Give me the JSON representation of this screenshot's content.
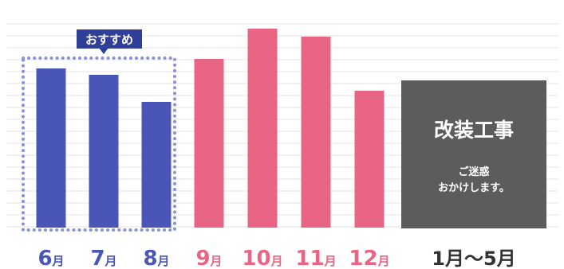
{
  "chart_data": {
    "type": "bar",
    "categories": [
      "6月",
      "7月",
      "8月",
      "9月",
      "10月",
      "11月",
      "12月"
    ],
    "values": [
      200,
      192,
      158,
      212,
      250,
      240,
      172
    ],
    "bar_colors": [
      "#4a55b8",
      "#4a55b8",
      "#4a55b8",
      "#e86583",
      "#e86583",
      "#e86583",
      "#e86583"
    ],
    "grid": true,
    "ylim": [
      0,
      270
    ],
    "recommend_badge": "おすすめ",
    "recommended_months": [
      "6月",
      "7月",
      "8月"
    ],
    "closed_period": {
      "label": "1月〜5月",
      "title": "改装工事",
      "message_line1": "ご迷惑",
      "message_line2": "おかけします。"
    }
  },
  "colors": {
    "recommend": "#4a55b8",
    "peak": "#e86583",
    "closed_box": "#5c5c5c",
    "closed_label": "#333333",
    "grid": "#e6e6e6"
  }
}
